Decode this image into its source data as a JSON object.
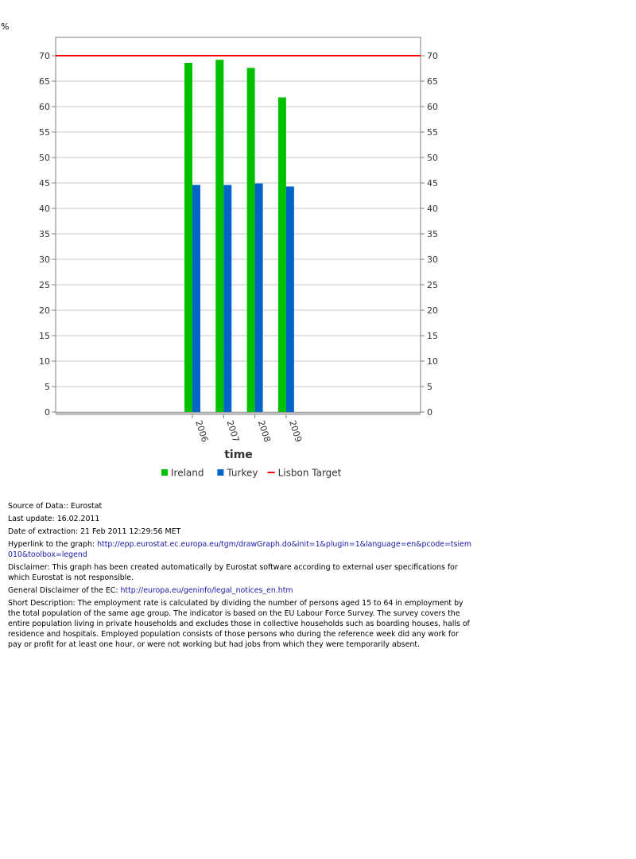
{
  "chart_data": {
    "type": "bar",
    "y_unit": "%",
    "xlabel": "time",
    "categories": [
      "2006",
      "2007",
      "2008",
      "2009"
    ],
    "series": [
      {
        "name": "Ireland",
        "color": "#00c000",
        "values": [
          68.6,
          69.2,
          67.6,
          61.8
        ]
      },
      {
        "name": "Turkey",
        "color": "#0064c8",
        "values": [
          44.6,
          44.6,
          44.9,
          44.3
        ]
      }
    ],
    "target": {
      "name": "Lisbon Target",
      "value": 70,
      "color": "#ff0000"
    },
    "ylim": [
      0,
      70
    ],
    "yticks": [
      0,
      5,
      10,
      15,
      20,
      25,
      30,
      35,
      40,
      45,
      50,
      55,
      60,
      65,
      70
    ],
    "grid": true,
    "legend_position": "bottom"
  },
  "info": {
    "source_label": "Source of Data::",
    "source_value": "Eurostat",
    "update_label": "Last update:",
    "update_value": "16.02.2011",
    "extraction_label": "Date of extraction:",
    "extraction_value": "21 Feb 2011 12:29:56 MET",
    "hyperlink_label": "Hyperlink to the graph:",
    "hyperlink_url": "http://epp.eurostat.ec.europa.eu/tgm/drawGraph.do&init=1&plugin=1&language=en&pcode=tsiem010&toolbox=legend",
    "disclaimer_label": "Disclaimer:",
    "disclaimer_text": "This graph has been created automatically by Eurostat software according to external user specifications for which Eurostat is not responsible.",
    "general_label": "General Disclaimer of the EC:",
    "general_url": "http://europa.eu/geninfo/legal_notices_en.htm",
    "short_label": "Short Description:",
    "short_text": "The employment rate is calculated by dividing the number of persons aged 15 to 64 in employment by the total population of the same age group. The indicator is based on the EU Labour Force Survey. The survey covers the entire population living in private households and excludes those in collective households such as boarding houses, halls of residence and hospitals. Employed population consists of those persons who during the reference week did any work for pay or profit for at least one hour, or were not working but had jobs from which they were temporarily absent."
  }
}
